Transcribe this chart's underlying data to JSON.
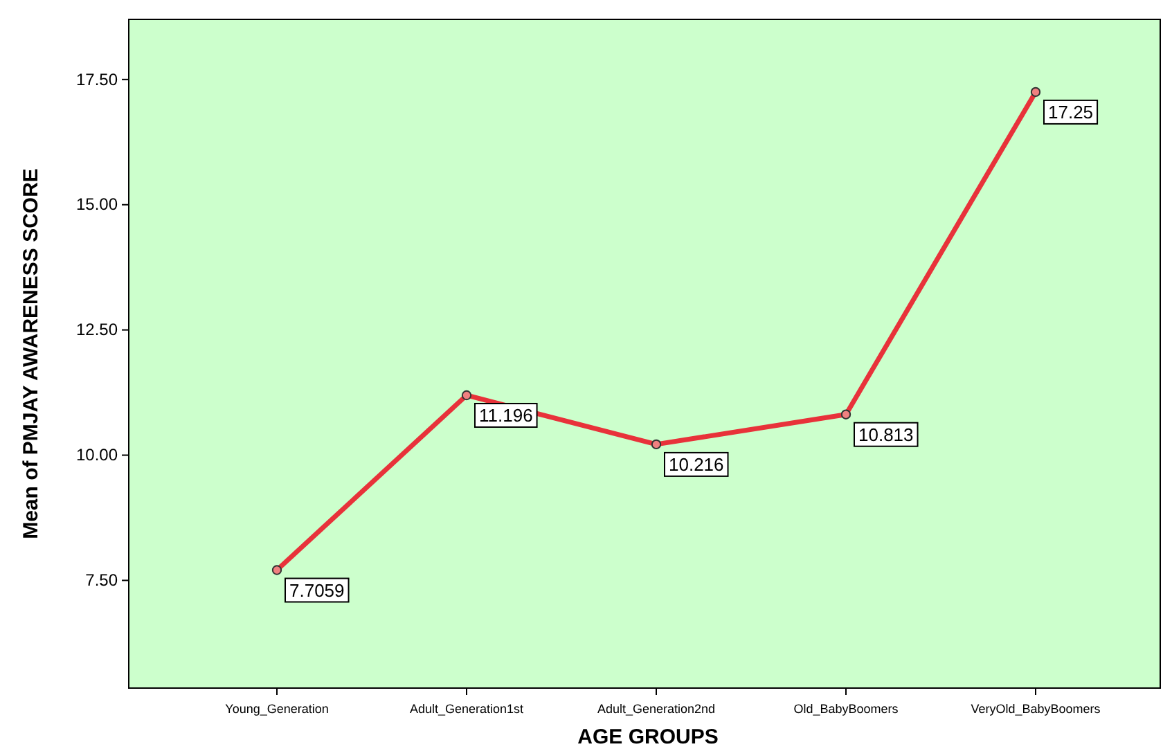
{
  "chart_data": {
    "type": "line",
    "xlabel": "AGE GROUPS",
    "ylabel": "Mean of PMJAY AWARENESS SCORE",
    "categories": [
      "Young_Generation",
      "Adult_Generation1st",
      "Adult_Generation2nd",
      "Old_BabyBoomers",
      "VeryOld_BabyBoomers"
    ],
    "series": [
      {
        "color": "#e8323a",
        "values": [
          7.7059,
          11.196,
          10.216,
          10.813,
          17.25
        ]
      }
    ],
    "ylim": [
      5.35,
      18.7
    ],
    "yticks": [
      {
        "value": 7.5,
        "label": "7.50"
      },
      {
        "value": 10,
        "label": "10.00"
      },
      {
        "value": 12.5,
        "label": "12.50"
      },
      {
        "value": 15,
        "label": "15.00"
      },
      {
        "value": 17.5,
        "label": "17.50"
      }
    ],
    "data_labels": true,
    "marker": "circle",
    "grid": false
  }
}
